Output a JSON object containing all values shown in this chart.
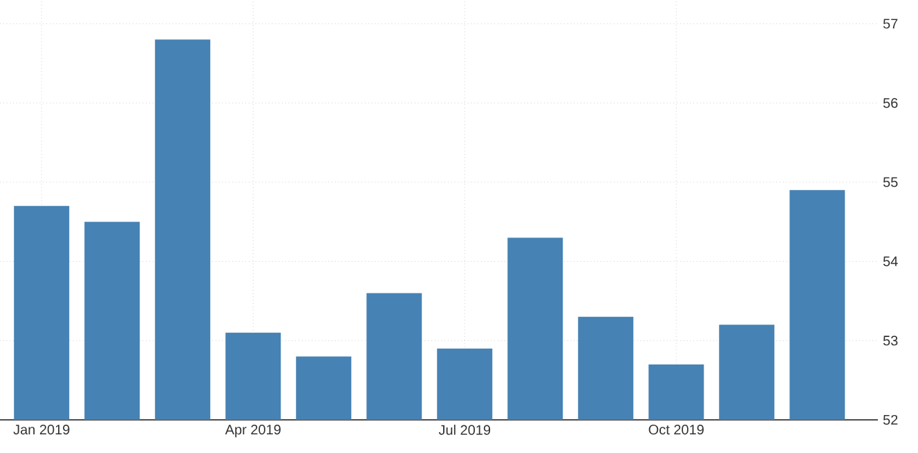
{
  "chart_data": {
    "type": "bar",
    "categories": [
      "Jan 2019",
      null,
      null,
      "Apr 2019",
      null,
      null,
      "Jul 2019",
      null,
      null,
      "Oct 2019",
      null,
      null
    ],
    "values": [
      54.7,
      54.5,
      56.8,
      53.1,
      52.8,
      53.6,
      52.9,
      54.3,
      53.3,
      52.7,
      53.2,
      54.9
    ],
    "color": "#4682b4",
    "ylim": [
      52,
      57.3
    ],
    "yticks": [
      52,
      53,
      54,
      55,
      56,
      57
    ],
    "grid": true
  }
}
